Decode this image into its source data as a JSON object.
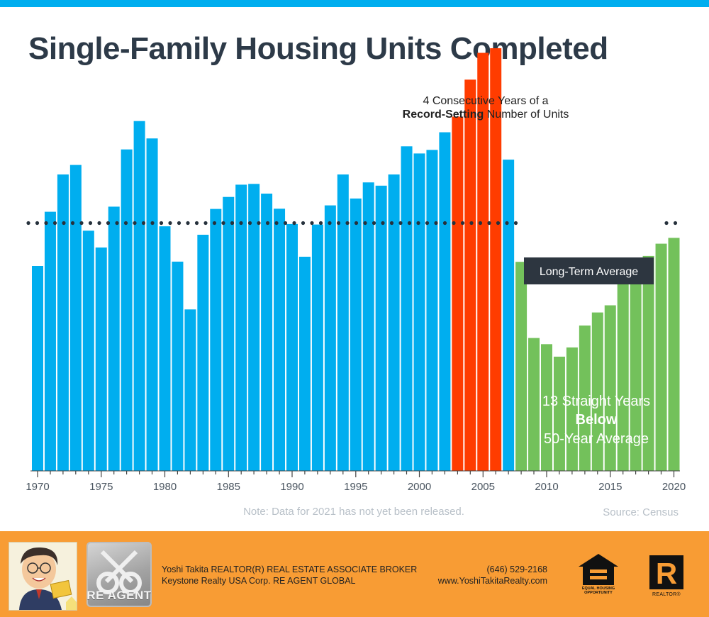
{
  "title": "Single-Family Housing Units Completed",
  "colors": {
    "top_bar": "#00aeef",
    "blue": "#00aeef",
    "red": "#ff3c00",
    "green": "#73c15b",
    "title": "#2d3a48",
    "avg_label_bg": "#2d3640",
    "footer_bg": "#f89c34"
  },
  "chart_data": {
    "type": "bar",
    "title": "Single-Family Housing Units Completed",
    "xlabel": "",
    "ylabel": "",
    "ylim": [
      0,
      1800
    ],
    "value_units": "thousands of units (estimated; no y-axis shown)",
    "grid": false,
    "x": [
      1970,
      1971,
      1972,
      1973,
      1974,
      1975,
      1976,
      1977,
      1978,
      1979,
      1980,
      1981,
      1982,
      1983,
      1984,
      1985,
      1986,
      1987,
      1988,
      1989,
      1990,
      1991,
      1992,
      1993,
      1994,
      1995,
      1996,
      1997,
      1998,
      1999,
      2000,
      2001,
      2002,
      2003,
      2004,
      2005,
      2006,
      2007,
      2008,
      2009,
      2010,
      2011,
      2012,
      2013,
      2014,
      2015,
      2016,
      2017,
      2018,
      2019,
      2020
    ],
    "values": [
      802,
      1014,
      1160,
      1197,
      940,
      874,
      1034,
      1258,
      1369,
      1301,
      957,
      819,
      632,
      924,
      1025,
      1072,
      1120,
      1123,
      1085,
      1026,
      966,
      838,
      964,
      1039,
      1160,
      1066,
      1129,
      1116,
      1160,
      1270,
      1242,
      1256,
      1325,
      1386,
      1531,
      1636,
      1654,
      1218,
      818,
      520,
      496,
      447,
      483,
      569,
      620,
      648,
      738,
      795,
      841,
      889,
      912
    ],
    "series_colors": [
      "blue",
      "blue",
      "blue",
      "blue",
      "blue",
      "blue",
      "blue",
      "blue",
      "blue",
      "blue",
      "blue",
      "blue",
      "blue",
      "blue",
      "blue",
      "blue",
      "blue",
      "blue",
      "blue",
      "blue",
      "blue",
      "blue",
      "blue",
      "blue",
      "blue",
      "blue",
      "blue",
      "blue",
      "blue",
      "blue",
      "blue",
      "blue",
      "blue",
      "red",
      "red",
      "red",
      "red",
      "blue",
      "green",
      "green",
      "green",
      "green",
      "green",
      "green",
      "green",
      "green",
      "green",
      "green",
      "green",
      "green",
      "green"
    ],
    "x_tick_labels": [
      "1970",
      "1975",
      "1980",
      "1985",
      "1990",
      "1995",
      "2000",
      "2005",
      "2010",
      "2015",
      "2020"
    ],
    "reference_line": {
      "label": "Long-Term Average",
      "value": 970
    },
    "annotations": {
      "record_line1": "4 Consecutive Years of a",
      "record_bold": "Record-Setting",
      "record_rest": " Number of Units",
      "below_line1": "13 Straight Years",
      "below_line2": "Below",
      "below_line3": "50-Year Average"
    }
  },
  "note": "Note: Data for 2021 has not yet been released.",
  "source": "Source: Census",
  "footer": {
    "agent_line1": "Yoshi Takita REALTOR(R) REAL ESTATE ASSOCIATE BROKER",
    "agent_line2": "Keystone Realty USA Corp.  RE AGENT GLOBAL",
    "phone": "(646) 529-2168",
    "website": "www.YoshiTakitaRealty.com",
    "logo_text": "RE AGENT",
    "eho_text": "EQUAL HOUSING OPPORTUNITY",
    "realtor_text": "REALTOR®"
  }
}
